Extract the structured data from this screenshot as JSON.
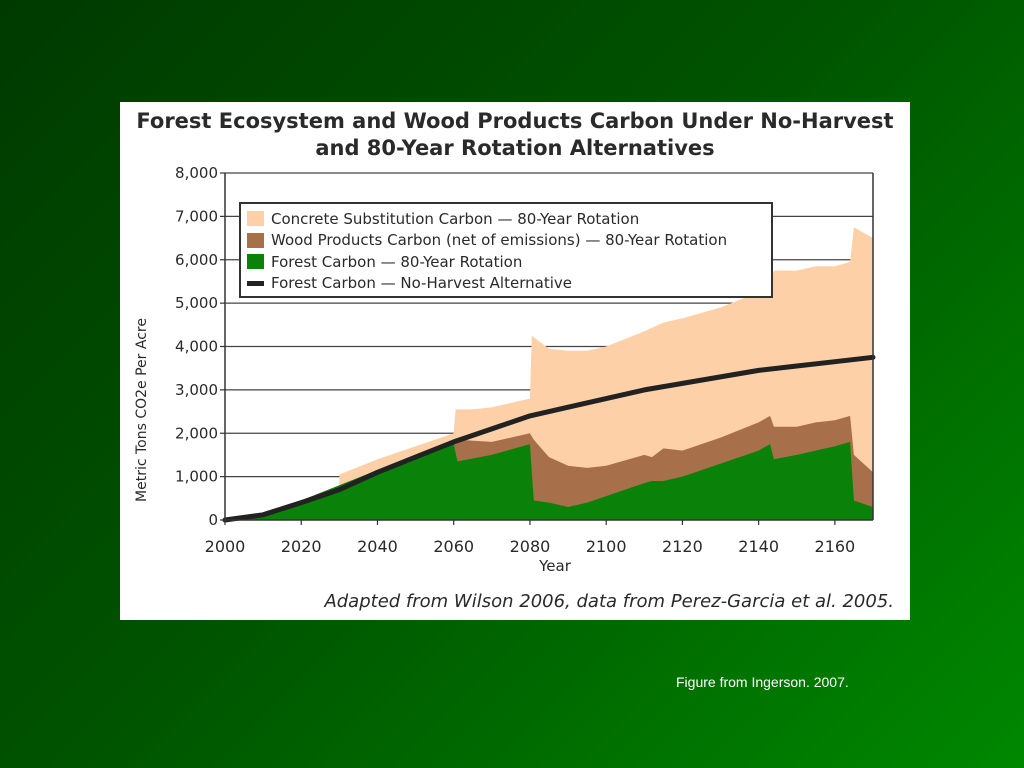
{
  "footer": {
    "caption": "Figure from Ingerson. 2007."
  },
  "chart_data": {
    "type": "area",
    "title": "Forest Ecosystem and Wood Products Carbon Under No-Harvest and 80-Year Rotation Alternatives",
    "title_lines": [
      "Forest Ecosystem and Wood Products Carbon Under No-Harvest",
      "and 80-Year Rotation Alternatives"
    ],
    "xlabel": "Year",
    "ylabel": "Metric Tons CO2e Per Acre",
    "xlim": [
      2000,
      2170
    ],
    "ylim": [
      0,
      8000
    ],
    "x_ticks": [
      "2000",
      "2020",
      "2040",
      "2060",
      "2080",
      "2100",
      "2120",
      "2140",
      "2160"
    ],
    "y_ticks": [
      "0",
      "1,000",
      "2,000",
      "3,000",
      "4,000",
      "5,000",
      "6,000",
      "7,000",
      "8,000"
    ],
    "grid": "horizontal",
    "legend_position": "top-left",
    "credit": "Adapted from Wilson 2006, data from Perez-Garcia et al. 2005.",
    "colors": {
      "concrete": "#fdd0a8",
      "wood": "#a8704a",
      "forest": "#0a820a",
      "noharvest": "#222222"
    },
    "series": [
      {
        "key": "concrete",
        "name": "Concrete Substitution Carbon — 80-Year Rotation",
        "x": [
          2000,
          2010,
          2020,
          2030,
          2030,
          2040,
          2050,
          2060,
          2060.5,
          2065,
          2070,
          2080,
          2080.5,
          2085,
          2090,
          2095,
          2100,
          2110,
          2115,
          2120,
          2130,
          2140,
          2143,
          2144,
          2150,
          2155,
          2160,
          2164,
          2165,
          2170
        ],
        "y": [
          0,
          150,
          450,
          800,
          1050,
          1400,
          1700,
          2000,
          2550,
          2550,
          2600,
          2800,
          4250,
          3950,
          3900,
          3900,
          4000,
          4350,
          4550,
          4650,
          4900,
          5250,
          5450,
          5750,
          5750,
          5850,
          5850,
          5950,
          6750,
          6500
        ]
      },
      {
        "key": "wood",
        "name": "Wood Products Carbon (net of emissions) — 80-Year Rotation",
        "x": [
          2000,
          2010,
          2020,
          2030,
          2040,
          2050,
          2060,
          2061,
          2070,
          2080,
          2081,
          2085,
          2090,
          2095,
          2100,
          2110,
          2112,
          2115,
          2120,
          2130,
          2140,
          2143,
          2144,
          2150,
          2155,
          2160,
          2164,
          2165,
          2170
        ],
        "y": [
          0,
          150,
          450,
          800,
          1150,
          1500,
          1800,
          1850,
          1800,
          2000,
          1850,
          1450,
          1250,
          1200,
          1250,
          1500,
          1450,
          1650,
          1600,
          1900,
          2250,
          2400,
          2150,
          2150,
          2250,
          2300,
          2400,
          1500,
          1100
        ]
      },
      {
        "key": "forest",
        "name": "Forest Carbon — 80-Year Rotation",
        "x": [
          2000,
          2010,
          2020,
          2030,
          2040,
          2050,
          2060,
          2061,
          2070,
          2080,
          2081,
          2085,
          2090,
          2095,
          2100,
          2110,
          2112,
          2115,
          2120,
          2130,
          2140,
          2143,
          2144,
          2150,
          2160,
          2164,
          2165,
          2170
        ],
        "y": [
          0,
          150,
          450,
          800,
          1150,
          1500,
          1750,
          1350,
          1500,
          1750,
          450,
          400,
          300,
          400,
          550,
          850,
          900,
          900,
          1000,
          1300,
          1600,
          1750,
          1400,
          1500,
          1700,
          1800,
          450,
          300
        ]
      },
      {
        "key": "noharvest",
        "name": "Forest Carbon — No-Harvest Alternative",
        "x": [
          2000,
          2010,
          2020,
          2030,
          2040,
          2050,
          2060,
          2070,
          2080,
          2090,
          2100,
          2110,
          2120,
          2130,
          2140,
          2150,
          2160,
          2170
        ],
        "y": [
          0,
          120,
          400,
          700,
          1100,
          1450,
          1800,
          2100,
          2400,
          2600,
          2800,
          3000,
          3150,
          3300,
          3450,
          3550,
          3650,
          3750
        ]
      }
    ]
  }
}
